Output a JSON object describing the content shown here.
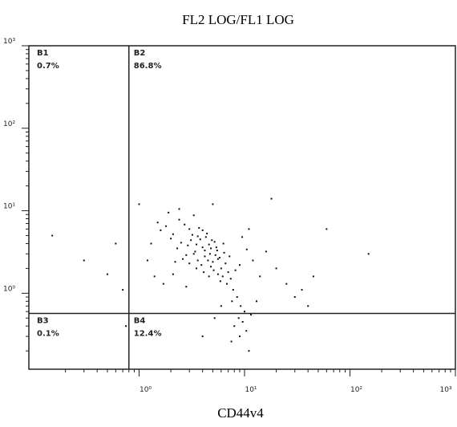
{
  "chart_data": {
    "type": "scatter",
    "title": "FL2 LOG/FL1 LOG",
    "x_label": "CD44v4",
    "log_x": true,
    "log_y": true,
    "color": "#111111",
    "xlim": [
      0.09,
      1000
    ],
    "ylim": [
      0.12,
      1000
    ],
    "xticks": [
      {
        "value": 1,
        "label": "10⁰"
      },
      {
        "value": 10,
        "label": "10¹"
      },
      {
        "value": 100,
        "label": "10²"
      },
      {
        "value": 1000,
        "label": "10³"
      }
    ],
    "yticks": [
      {
        "value": 1,
        "label": "10⁰"
      },
      {
        "value": 10,
        "label": "10¹"
      },
      {
        "value": 100,
        "label": "10²"
      },
      {
        "value": 1000,
        "label": "10³"
      }
    ],
    "gate_x": 0.8,
    "gate_y": 0.57,
    "quadrants": {
      "names": [
        "B1",
        "B2",
        "B3",
        "B4"
      ],
      "values": [
        0.7,
        86.8,
        0.1,
        12.4
      ],
      "value_labels": [
        "0.7%",
        "86.8%",
        "0.1%",
        "12.4%"
      ]
    },
    "x": [
      2.1,
      2.5,
      3.0,
      3.4,
      3.8,
      4.2,
      4.6,
      5.0,
      5.5,
      6.0,
      2.8,
      3.2,
      3.6,
      4.0,
      4.4,
      4.8,
      5.2,
      5.8,
      6.4,
      7.0,
      2.3,
      2.7,
      3.1,
      3.5,
      3.9,
      4.3,
      4.7,
      5.1,
      5.6,
      6.2,
      2.0,
      2.6,
      3.3,
      3.7,
      4.1,
      4.5,
      4.9,
      5.4,
      6.6,
      7.4,
      1.8,
      2.4,
      2.9,
      3.5,
      4.0,
      4.6,
      5.3,
      5.9,
      6.8,
      7.8,
      1.6,
      2.2,
      3.0,
      3.6,
      4.2,
      4.8,
      5.6,
      6.3,
      7.2,
      8.2,
      1.3,
      1.5,
      1.9,
      2.4,
      3.3,
      1.2,
      1.4,
      1.7,
      2.1,
      2.8,
      9.0,
      10.5,
      12.0,
      14.0,
      9.5,
      11.0,
      16.0,
      20.0,
      25.0,
      30.0,
      8.5,
      9.2,
      7.6,
      10.0,
      8.8,
      9.6,
      8.0,
      10.4,
      9.0,
      7.5,
      6.0,
      5.2,
      11.5,
      13.0,
      40.0,
      35.0,
      45.0,
      0.6,
      0.5,
      0.7,
      1.0,
      5.0,
      18.0,
      60.0,
      150.0,
      0.3,
      0.15,
      4.0,
      0.75,
      11.0
    ],
    "y": [
      5.2,
      4.1,
      6.0,
      3.2,
      4.5,
      2.8,
      3.9,
      2.4,
      3.3,
      2.0,
      2.9,
      5.1,
      2.5,
      3.6,
      5.3,
      2.1,
      4.2,
      2.7,
      3.1,
      1.8,
      3.5,
      6.8,
      4.4,
      3.9,
      2.2,
      4.8,
      3.0,
      1.9,
      2.6,
      1.6,
      4.6,
      2.6,
      3.0,
      6.2,
      1.8,
      2.5,
      4.4,
      3.6,
      2.3,
      1.5,
      6.5,
      7.8,
      3.8,
      2.0,
      5.8,
      1.6,
      2.9,
      1.4,
      1.3,
      1.1,
      5.8,
      2.4,
      2.3,
      4.9,
      3.3,
      3.5,
      1.7,
      4.0,
      2.8,
      1.9,
      4.0,
      7.2,
      9.5,
      10.5,
      8.8,
      2.5,
      1.6,
      1.3,
      1.7,
      1.2,
      2.2,
      3.4,
      2.5,
      1.6,
      4.8,
      6.0,
      3.2,
      2.0,
      1.3,
      0.9,
      0.9,
      0.7,
      0.8,
      0.6,
      0.5,
      0.45,
      0.4,
      0.35,
      0.3,
      0.26,
      0.7,
      0.5,
      0.55,
      0.8,
      0.7,
      1.1,
      1.6,
      4.0,
      1.7,
      1.1,
      12.0,
      12.0,
      14.0,
      6.0,
      3.0,
      2.5,
      5.0,
      0.3,
      0.4,
      0.2
    ]
  }
}
